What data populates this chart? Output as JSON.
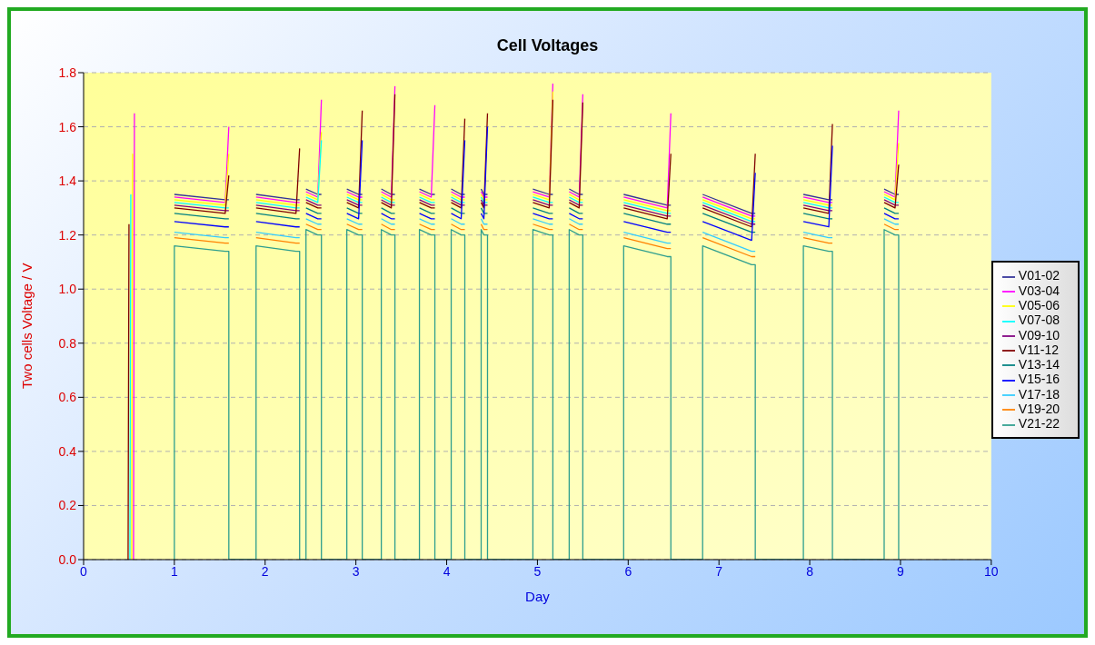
{
  "chart_data": {
    "type": "line",
    "title": "Cell Voltages",
    "xlabel": "Day",
    "ylabel": "Two cells Voltage / V",
    "x": [
      0.49,
      0.5,
      0.51,
      0.52,
      0.53,
      0.54,
      0.55,
      0.56,
      1,
      1,
      1.56,
      1.6,
      1.6,
      1.9,
      1.9,
      2.34,
      2.38,
      2.38,
      2.45,
      2.45,
      2.58,
      2.62,
      2.62,
      2.9,
      2.9,
      3.03,
      3.07,
      3.07,
      3.28,
      3.28,
      3.39,
      3.43,
      3.43,
      3.7,
      3.7,
      3.83,
      3.87,
      3.87,
      4.05,
      4.05,
      4.16,
      4.2,
      4.2,
      4.38,
      4.38,
      4.41,
      4.45,
      4.45,
      4.95,
      4.95,
      5.13,
      5.17,
      5.17,
      5.35,
      5.35,
      5.46,
      5.5,
      5.5,
      5.95,
      5.95,
      6.43,
      6.47,
      6.47,
      6.82,
      6.82,
      7.36,
      7.4,
      7.4,
      7.93,
      7.93,
      8.21,
      8.25,
      8.25,
      8.82,
      8.82,
      8.94,
      8.98,
      8.98
    ],
    "series": [
      {
        "name": "V01-02",
        "color": "#333399",
        "values": [
          null,
          null,
          null,
          null,
          null,
          null,
          null,
          null,
          null,
          1.35,
          1.33,
          1.33,
          null,
          null,
          1.35,
          1.33,
          1.33,
          null,
          null,
          1.37,
          1.35,
          1.35,
          null,
          null,
          1.37,
          1.35,
          1.35,
          null,
          null,
          1.37,
          1.35,
          1.35,
          null,
          null,
          1.37,
          1.35,
          1.35,
          null,
          null,
          1.37,
          1.35,
          1.35,
          null,
          null,
          1.37,
          1.35,
          1.35,
          null,
          null,
          1.37,
          1.35,
          1.35,
          null,
          null,
          1.37,
          1.35,
          1.35,
          null,
          null,
          1.35,
          1.31,
          1.31,
          null,
          null,
          1.35,
          1.28,
          1.28,
          null,
          null,
          1.35,
          1.33,
          1.33,
          null,
          null,
          1.37,
          1.35,
          1.35,
          null
        ]
      },
      {
        "name": "V03-04",
        "color": "#ff00ff",
        "values": [
          null,
          null,
          null,
          null,
          null,
          null,
          0,
          1.65,
          null,
          1.34,
          1.32,
          1.6,
          null,
          null,
          1.34,
          1.32,
          1.32,
          null,
          null,
          1.36,
          1.34,
          1.7,
          null,
          null,
          1.36,
          1.34,
          1.34,
          null,
          null,
          1.36,
          1.34,
          1.75,
          null,
          null,
          1.36,
          1.34,
          1.68,
          null,
          null,
          1.36,
          1.34,
          1.34,
          null,
          null,
          1.36,
          1.34,
          1.34,
          null,
          null,
          1.36,
          1.34,
          1.76,
          null,
          null,
          1.36,
          1.34,
          1.72,
          null,
          null,
          1.34,
          1.3,
          1.65,
          null,
          null,
          1.34,
          1.27,
          1.27,
          null,
          null,
          1.34,
          1.32,
          1.32,
          null,
          null,
          1.36,
          1.34,
          1.66,
          null
        ]
      },
      {
        "name": "V05-06",
        "color": "#ffff00",
        "values": [
          null,
          null,
          null,
          null,
          0,
          1.5,
          null,
          null,
          null,
          1.33,
          1.31,
          1.5,
          null,
          null,
          1.33,
          1.31,
          1.31,
          null,
          null,
          1.35,
          1.33,
          1.58,
          null,
          null,
          1.35,
          1.33,
          1.33,
          null,
          null,
          1.35,
          1.33,
          1.33,
          null,
          null,
          1.35,
          1.33,
          1.33,
          null,
          null,
          1.35,
          1.33,
          1.33,
          null,
          null,
          1.35,
          1.33,
          1.33,
          null,
          null,
          1.35,
          1.33,
          1.73,
          null,
          null,
          1.35,
          1.33,
          1.33,
          null,
          null,
          1.33,
          1.29,
          1.29,
          null,
          null,
          1.33,
          1.26,
          1.26,
          null,
          null,
          1.33,
          1.31,
          1.31,
          null,
          null,
          1.35,
          1.33,
          1.54,
          null
        ]
      },
      {
        "name": "V07-08",
        "color": "#00ffff",
        "values": [
          null,
          null,
          0,
          1.35,
          null,
          null,
          null,
          null,
          null,
          1.32,
          1.3,
          1.3,
          null,
          null,
          1.32,
          1.3,
          1.3,
          null,
          null,
          1.34,
          1.32,
          1.55,
          null,
          null,
          1.34,
          1.32,
          1.32,
          null,
          null,
          1.34,
          1.32,
          1.32,
          null,
          null,
          1.34,
          1.32,
          1.32,
          null,
          null,
          1.34,
          1.32,
          1.32,
          null,
          null,
          1.34,
          1.32,
          1.32,
          null,
          null,
          1.34,
          1.32,
          1.32,
          null,
          null,
          1.34,
          1.32,
          1.32,
          null,
          null,
          1.32,
          1.28,
          1.28,
          null,
          null,
          1.32,
          1.25,
          1.25,
          null,
          null,
          1.32,
          1.3,
          1.3,
          null,
          null,
          1.34,
          1.32,
          1.32,
          null
        ]
      },
      {
        "name": "V09-10",
        "color": "#800080",
        "values": [
          null,
          null,
          null,
          null,
          null,
          null,
          null,
          null,
          null,
          1.31,
          1.29,
          1.29,
          null,
          null,
          1.31,
          1.29,
          1.29,
          null,
          null,
          1.33,
          1.31,
          1.31,
          null,
          null,
          1.33,
          1.31,
          1.31,
          null,
          null,
          1.33,
          1.31,
          1.31,
          null,
          null,
          1.33,
          1.31,
          1.31,
          null,
          null,
          1.33,
          1.31,
          1.31,
          null,
          null,
          1.33,
          1.31,
          1.31,
          null,
          null,
          1.33,
          1.31,
          1.31,
          null,
          null,
          1.33,
          1.31,
          1.31,
          null,
          null,
          1.31,
          1.27,
          1.27,
          null,
          null,
          1.31,
          1.24,
          1.24,
          null,
          null,
          1.31,
          1.29,
          1.29,
          null,
          null,
          1.33,
          1.31,
          1.31,
          null
        ]
      },
      {
        "name": "V11-12",
        "color": "#800000",
        "values": [
          0,
          1.24,
          null,
          null,
          null,
          null,
          null,
          null,
          null,
          1.3,
          1.28,
          1.42,
          null,
          null,
          1.3,
          1.28,
          1.52,
          null,
          null,
          1.32,
          1.3,
          1.3,
          null,
          null,
          1.32,
          1.3,
          1.66,
          null,
          null,
          1.32,
          1.3,
          1.72,
          null,
          null,
          1.32,
          1.3,
          1.3,
          null,
          null,
          1.32,
          1.3,
          1.63,
          null,
          null,
          1.32,
          1.3,
          1.65,
          null,
          null,
          1.32,
          1.3,
          1.7,
          null,
          null,
          1.32,
          1.3,
          1.69,
          null,
          null,
          1.3,
          1.26,
          1.5,
          null,
          null,
          1.3,
          1.23,
          1.5,
          null,
          null,
          1.3,
          1.28,
          1.61,
          null,
          null,
          1.32,
          1.3,
          1.46,
          null
        ]
      },
      {
        "name": "V13-14",
        "color": "#008080",
        "values": [
          null,
          null,
          null,
          null,
          null,
          null,
          null,
          null,
          null,
          1.28,
          1.26,
          1.26,
          null,
          null,
          1.28,
          1.26,
          1.26,
          null,
          null,
          1.3,
          1.28,
          1.28,
          null,
          null,
          1.3,
          1.28,
          1.28,
          null,
          null,
          1.3,
          1.28,
          1.28,
          null,
          null,
          1.3,
          1.28,
          1.28,
          null,
          null,
          1.3,
          1.28,
          1.28,
          null,
          null,
          1.3,
          1.28,
          1.28,
          null,
          null,
          1.3,
          1.28,
          1.28,
          null,
          null,
          1.3,
          1.28,
          1.28,
          null,
          null,
          1.28,
          1.24,
          1.24,
          null,
          null,
          1.28,
          1.21,
          1.21,
          null,
          null,
          1.28,
          1.26,
          1.26,
          null,
          null,
          1.3,
          1.28,
          1.28,
          null
        ]
      },
      {
        "name": "V15-16",
        "color": "#0000ff",
        "values": [
          null,
          null,
          null,
          null,
          null,
          null,
          null,
          null,
          null,
          1.25,
          1.23,
          1.23,
          null,
          null,
          1.25,
          1.23,
          1.23,
          null,
          null,
          1.28,
          1.26,
          1.26,
          null,
          null,
          1.28,
          1.26,
          1.55,
          null,
          null,
          1.28,
          1.26,
          1.26,
          null,
          null,
          1.28,
          1.26,
          1.26,
          null,
          null,
          1.28,
          1.26,
          1.55,
          null,
          null,
          1.28,
          1.26,
          1.6,
          null,
          null,
          1.28,
          1.26,
          1.26,
          null,
          null,
          1.28,
          1.26,
          1.26,
          null,
          null,
          1.25,
          1.21,
          1.21,
          null,
          null,
          1.25,
          1.18,
          1.43,
          null,
          null,
          1.25,
          1.23,
          1.53,
          null,
          null,
          1.28,
          1.26,
          1.26,
          null
        ]
      },
      {
        "name": "V17-18",
        "color": "#33ccff",
        "values": [
          null,
          null,
          null,
          null,
          null,
          null,
          null,
          null,
          null,
          1.21,
          1.19,
          1.19,
          null,
          null,
          1.21,
          1.19,
          1.19,
          null,
          null,
          1.26,
          1.24,
          1.24,
          null,
          null,
          1.26,
          1.24,
          1.24,
          null,
          null,
          1.26,
          1.24,
          1.24,
          null,
          null,
          1.26,
          1.24,
          1.24,
          null,
          null,
          1.26,
          1.24,
          1.24,
          null,
          null,
          1.26,
          1.24,
          1.24,
          null,
          null,
          1.26,
          1.24,
          1.24,
          null,
          null,
          1.26,
          1.24,
          1.24,
          null,
          null,
          1.21,
          1.17,
          1.17,
          null,
          null,
          1.21,
          1.14,
          1.14,
          null,
          null,
          1.21,
          1.19,
          1.19,
          null,
          null,
          1.26,
          1.24,
          1.24,
          null
        ]
      },
      {
        "name": "V19-20",
        "color": "#ff8000",
        "values": [
          null,
          null,
          null,
          null,
          null,
          null,
          null,
          null,
          null,
          1.19,
          1.17,
          1.17,
          null,
          null,
          1.19,
          1.17,
          1.17,
          null,
          null,
          1.24,
          1.22,
          1.22,
          null,
          null,
          1.24,
          1.22,
          1.22,
          null,
          null,
          1.24,
          1.22,
          1.22,
          null,
          null,
          1.24,
          1.22,
          1.22,
          null,
          null,
          1.24,
          1.22,
          1.22,
          null,
          null,
          1.24,
          1.22,
          1.22,
          null,
          null,
          1.24,
          1.22,
          1.22,
          null,
          null,
          1.24,
          1.22,
          1.22,
          null,
          null,
          1.19,
          1.15,
          1.15,
          null,
          null,
          1.19,
          1.12,
          1.12,
          null,
          null,
          1.19,
          1.17,
          1.17,
          null,
          null,
          1.24,
          1.22,
          1.22,
          null
        ]
      },
      {
        "name": "V21-22",
        "color": "#2e9e8e",
        "values": [
          null,
          null,
          null,
          null,
          null,
          null,
          null,
          null,
          0,
          1.16,
          1.14,
          1.14,
          0,
          0,
          1.16,
          1.14,
          1.14,
          0,
          0,
          1.22,
          1.2,
          1.2,
          0,
          0,
          1.22,
          1.2,
          1.2,
          0,
          0,
          1.22,
          1.2,
          1.2,
          0,
          0,
          1.22,
          1.2,
          1.2,
          0,
          0,
          1.22,
          1.2,
          1.2,
          0,
          0,
          1.22,
          1.2,
          1.2,
          0,
          0,
          1.22,
          1.2,
          1.2,
          0,
          0,
          1.22,
          1.2,
          1.2,
          0,
          0,
          1.16,
          1.12,
          1.12,
          0,
          0,
          1.16,
          1.09,
          1.09,
          0,
          0,
          1.16,
          1.14,
          1.14,
          0,
          0,
          1.22,
          1.2,
          1.2,
          0
        ]
      }
    ],
    "xlim": [
      0,
      10
    ],
    "xticks": [
      0,
      1,
      2,
      3,
      4,
      5,
      6,
      7,
      8,
      9,
      10
    ],
    "ylim": [
      0,
      1.8
    ],
    "yticks": [
      {
        "value": 0,
        "label": "0.0"
      },
      {
        "value": 0.2,
        "label": "0.2"
      },
      {
        "value": 0.4,
        "label": "0.4"
      },
      {
        "value": 0.6,
        "label": "0.6"
      },
      {
        "value": 0.8,
        "label": "0.8"
      },
      {
        "value": 1,
        "label": "1.0"
      },
      {
        "value": 1.2,
        "label": "1.2"
      },
      {
        "value": 1.4,
        "label": "1.4"
      },
      {
        "value": 1.6,
        "label": "1.6"
      },
      {
        "value": 1.8,
        "label": "1.8"
      }
    ],
    "grid": "y",
    "legend": "right"
  }
}
